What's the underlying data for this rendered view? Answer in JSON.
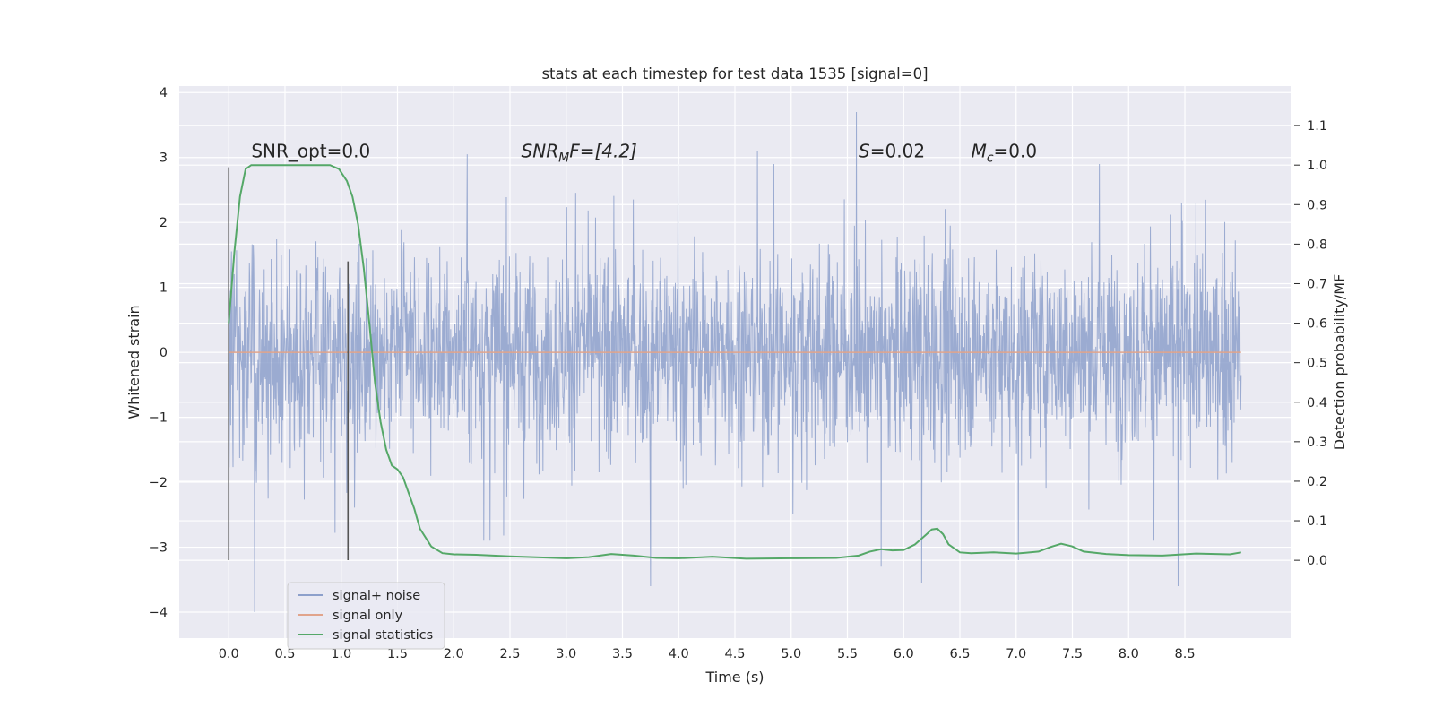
{
  "chart_data": {
    "type": "line",
    "title": "stats at each timestep for test data 1535 [signal=0]",
    "xlabel": "Time (s)",
    "ylabel": "Whitened strain",
    "y2label": "Detection probability/MF",
    "xlim": [
      -0.44,
      9.44
    ],
    "ylim": [
      -4.4,
      4.1
    ],
    "y2lim": [
      -0.197,
      1.2
    ],
    "xticks": [
      "0.0",
      "0.5",
      "1.0",
      "1.5",
      "2.0",
      "2.5",
      "3.0",
      "3.5",
      "4.0",
      "4.5",
      "5.0",
      "5.5",
      "6.0",
      "6.5",
      "7.0",
      "7.5",
      "8.0",
      "8.5"
    ],
    "yticks": [
      "−4",
      "−3",
      "−2",
      "−1",
      "0",
      "1",
      "2",
      "3",
      "4"
    ],
    "y2ticks": [
      "0.0",
      "0.1",
      "0.2",
      "0.3",
      "0.4",
      "0.5",
      "0.6",
      "0.7",
      "0.8",
      "0.9",
      "1.0",
      "1.1"
    ],
    "grid": true,
    "legend_position": "lower-left",
    "series": [
      {
        "name": "signal+ noise",
        "color": "#8da0cb",
        "axis": "left",
        "description": "whitened noise-dominated strain, 0.0 to 9.0 s",
        "duration_s": 9.0,
        "typical_range": [
          -1.5,
          1.5
        ],
        "extremes": [
          {
            "x": 0.23,
            "y": -4.0
          },
          {
            "x": 5.58,
            "y": 3.7
          },
          {
            "x": 3.75,
            "y": -3.6
          },
          {
            "x": 8.44,
            "y": -3.6
          },
          {
            "x": 6.16,
            "y": -3.55
          },
          {
            "x": 4.7,
            "y": 3.1
          },
          {
            "x": 2.12,
            "y": 3.05
          },
          {
            "x": 0.35,
            "y": -2.25
          },
          {
            "x": 5.8,
            "y": -3.3
          },
          {
            "x": 7.02,
            "y": -3.2
          }
        ]
      },
      {
        "name": "signal only",
        "color": "#e1a48b",
        "axis": "left",
        "x": [
          0.0,
          9.0
        ],
        "y": [
          0.0,
          0.0
        ]
      },
      {
        "name": "signal statistics",
        "color": "#55a868",
        "axis": "right",
        "x": [
          0.0,
          0.05,
          0.1,
          0.15,
          0.2,
          0.3,
          0.5,
          0.7,
          0.9,
          0.98,
          1.05,
          1.1,
          1.15,
          1.2,
          1.25,
          1.3,
          1.35,
          1.4,
          1.45,
          1.5,
          1.55,
          1.6,
          1.65,
          1.7,
          1.8,
          1.9,
          2.0,
          2.2,
          2.5,
          3.0,
          3.2,
          3.4,
          3.6,
          3.8,
          4.0,
          4.3,
          4.6,
          5.0,
          5.4,
          5.6,
          5.7,
          5.8,
          5.9,
          6.0,
          6.1,
          6.2,
          6.25,
          6.3,
          6.35,
          6.4,
          6.5,
          6.6,
          6.8,
          7.0,
          7.2,
          7.3,
          7.4,
          7.5,
          7.6,
          7.8,
          8.0,
          8.3,
          8.6,
          8.9,
          9.0
        ],
        "y": [
          0.6,
          0.78,
          0.92,
          0.99,
          1.0,
          1.0,
          1.0,
          1.0,
          1.0,
          0.99,
          0.96,
          0.92,
          0.85,
          0.74,
          0.6,
          0.45,
          0.35,
          0.28,
          0.24,
          0.23,
          0.21,
          0.17,
          0.13,
          0.08,
          0.035,
          0.018,
          0.015,
          0.014,
          0.01,
          0.005,
          0.008,
          0.016,
          0.012,
          0.006,
          0.005,
          0.009,
          0.004,
          0.005,
          0.006,
          0.012,
          0.022,
          0.028,
          0.025,
          0.026,
          0.04,
          0.065,
          0.078,
          0.08,
          0.066,
          0.04,
          0.02,
          0.018,
          0.02,
          0.017,
          0.022,
          0.033,
          0.042,
          0.035,
          0.022,
          0.016,
          0.013,
          0.012,
          0.017,
          0.015,
          0.02
        ]
      }
    ],
    "vertical_markers": [
      {
        "x": 0.0,
        "y_range": [
          -3.2,
          2.85
        ],
        "color": "#555555"
      },
      {
        "x": 1.06,
        "y_range": [
          -3.2,
          1.4
        ],
        "color": "#555555"
      }
    ],
    "annotations": [
      {
        "id": "snr-opt",
        "x": 0.2,
        "y": 3.0,
        "label": "SNR_opt=0.0"
      },
      {
        "id": "snr-mf",
        "x": 2.6,
        "y": 3.0,
        "prefix": "SNR",
        "sub": "M",
        "suffix": "F=[4.2]"
      },
      {
        "id": "s-stat",
        "x": 5.6,
        "y": 3.0,
        "prefix": "S",
        "suffix": "=0.02"
      },
      {
        "id": "mc",
        "x": 6.6,
        "y": 3.0,
        "prefix": "M",
        "sub": "c",
        "suffix": "=0.0"
      }
    ]
  }
}
